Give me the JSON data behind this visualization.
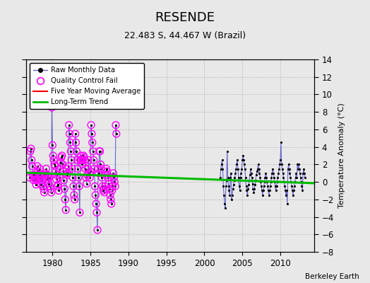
{
  "title": "RESENDE",
  "subtitle": "22.483 S, 44.467 W (Brazil)",
  "ylabel": "Temperature Anomaly (°C)",
  "credit": "Berkeley Earth",
  "xlim": [
    1976.5,
    2014.5
  ],
  "ylim": [
    -8,
    14
  ],
  "yticks": [
    -8,
    -6,
    -4,
    -2,
    0,
    2,
    4,
    6,
    8,
    10,
    12,
    14
  ],
  "xticks": [
    1980,
    1985,
    1990,
    1995,
    2000,
    2005,
    2010
  ],
  "background_color": "#e8e8e8",
  "plot_background": "#e8e8e8",
  "raw_color": "#6666cc",
  "qc_color": "#ff00ff",
  "ma_color": "#ff0000",
  "trend_color": "#00bb00",
  "raw_segments": [
    [
      [
        1977.0,
        0.5
      ],
      [
        1977.083,
        3.5
      ],
      [
        1977.167,
        3.8
      ],
      [
        1977.25,
        2.5
      ],
      [
        1977.333,
        1.8
      ],
      [
        1977.417,
        0.8
      ],
      [
        1977.5,
        0.2
      ],
      [
        1977.583,
        0.5
      ],
      [
        1977.667,
        0.8
      ],
      [
        1977.75,
        0.3
      ],
      [
        1977.833,
        -0.3
      ],
      [
        1977.917,
        0.2
      ],
      [
        1978.0,
        1.8
      ],
      [
        1978.083,
        1.2
      ],
      [
        1978.167,
        0.5
      ],
      [
        1978.25,
        0.8
      ],
      [
        1978.333,
        1.5
      ],
      [
        1978.417,
        0.5
      ],
      [
        1978.5,
        -0.3
      ],
      [
        1978.583,
        0.2
      ],
      [
        1978.667,
        0.8
      ],
      [
        1978.75,
        -0.5
      ],
      [
        1978.833,
        -0.8
      ],
      [
        1978.917,
        -1.2
      ],
      [
        1979.0,
        1.0
      ],
      [
        1979.083,
        0.8
      ],
      [
        1979.167,
        1.5
      ],
      [
        1979.25,
        0.3
      ],
      [
        1979.333,
        0.8
      ],
      [
        1979.417,
        0.5
      ],
      [
        1979.5,
        -0.2
      ],
      [
        1979.583,
        0.5
      ],
      [
        1979.667,
        -0.5
      ],
      [
        1979.75,
        -0.8
      ],
      [
        1979.833,
        -1.2
      ],
      [
        1979.917,
        8.5
      ],
      [
        1980.0,
        4.2
      ],
      [
        1980.083,
        3.0
      ],
      [
        1980.167,
        2.5
      ],
      [
        1980.25,
        2.0
      ],
      [
        1980.333,
        1.8
      ],
      [
        1980.417,
        1.2
      ],
      [
        1980.5,
        0.3
      ],
      [
        1980.583,
        0.8
      ],
      [
        1980.667,
        -0.5
      ],
      [
        1980.75,
        -0.3
      ],
      [
        1980.833,
        -1.0
      ],
      [
        1980.917,
        0.5
      ],
      [
        1981.0,
        1.5
      ],
      [
        1981.083,
        2.2
      ],
      [
        1981.167,
        2.8
      ],
      [
        1981.25,
        3.0
      ],
      [
        1981.333,
        2.0
      ],
      [
        1981.417,
        1.2
      ],
      [
        1981.5,
        0.2
      ],
      [
        1981.583,
        -0.8
      ],
      [
        1981.667,
        -2.0
      ],
      [
        1981.75,
        -3.2
      ],
      [
        1981.833,
        1.5
      ],
      [
        1981.917,
        0.8
      ],
      [
        1982.0,
        1.0
      ],
      [
        1982.083,
        1.8
      ],
      [
        1982.167,
        6.5
      ],
      [
        1982.25,
        5.5
      ],
      [
        1982.333,
        4.5
      ],
      [
        1982.417,
        3.5
      ],
      [
        1982.5,
        2.5
      ],
      [
        1982.583,
        1.5
      ],
      [
        1982.667,
        0.5
      ],
      [
        1982.75,
        -0.5
      ],
      [
        1982.833,
        -1.5
      ],
      [
        1982.917,
        -2.0
      ],
      [
        1983.0,
        5.5
      ],
      [
        1983.083,
        4.5
      ],
      [
        1983.167,
        3.5
      ],
      [
        1983.25,
        2.5
      ],
      [
        1983.333,
        1.5
      ],
      [
        1983.417,
        0.5
      ],
      [
        1983.5,
        -0.5
      ],
      [
        1983.583,
        -3.5
      ],
      [
        1983.667,
        2.5
      ],
      [
        1983.75,
        3.0
      ],
      [
        1983.833,
        2.5
      ],
      [
        1983.917,
        2.0
      ],
      [
        1984.0,
        2.5
      ],
      [
        1984.083,
        3.0
      ],
      [
        1984.167,
        2.8
      ],
      [
        1984.25,
        2.5
      ],
      [
        1984.333,
        1.5
      ],
      [
        1984.417,
        0.5
      ],
      [
        1984.5,
        -0.2
      ],
      [
        1984.583,
        0.8
      ],
      [
        1984.667,
        1.5
      ],
      [
        1984.75,
        2.5
      ],
      [
        1984.833,
        1.0
      ],
      [
        1984.917,
        0.5
      ],
      [
        1985.0,
        1.2
      ],
      [
        1985.083,
        6.5
      ],
      [
        1985.167,
        5.5
      ],
      [
        1985.25,
        4.5
      ],
      [
        1985.333,
        3.5
      ],
      [
        1985.417,
        2.5
      ],
      [
        1985.5,
        1.5
      ],
      [
        1985.583,
        -0.5
      ],
      [
        1985.667,
        -1.5
      ],
      [
        1985.75,
        -2.5
      ],
      [
        1985.833,
        -3.5
      ],
      [
        1985.917,
        -5.5
      ],
      [
        1986.0,
        1.5
      ],
      [
        1986.083,
        1.0
      ],
      [
        1986.167,
        3.5
      ],
      [
        1986.25,
        3.5
      ],
      [
        1986.333,
        2.0
      ],
      [
        1986.417,
        1.5
      ],
      [
        1986.5,
        0.5
      ],
      [
        1986.583,
        -0.5
      ],
      [
        1986.667,
        -1.0
      ],
      [
        1986.75,
        -0.8
      ],
      [
        1986.833,
        -1.2
      ],
      [
        1986.917,
        -0.5
      ],
      [
        1987.0,
        0.8
      ],
      [
        1987.083,
        1.5
      ],
      [
        1987.167,
        1.2
      ],
      [
        1987.25,
        0.8
      ],
      [
        1987.333,
        0.5
      ],
      [
        1987.417,
        -0.2
      ],
      [
        1987.5,
        -0.8
      ],
      [
        1987.583,
        -1.5
      ],
      [
        1987.667,
        -2.0
      ],
      [
        1987.75,
        -2.5
      ],
      [
        1987.833,
        -1.0
      ],
      [
        1987.917,
        -0.5
      ],
      [
        1988.0,
        1.0
      ],
      [
        1988.083,
        0.5
      ],
      [
        1988.167,
        0.0
      ],
      [
        1988.25,
        -0.5
      ],
      [
        1988.333,
        6.5
      ],
      [
        1988.417,
        5.5
      ]
    ],
    [
      [
        2002.0,
        0.3
      ],
      [
        2002.083,
        0.5
      ],
      [
        2002.167,
        1.5
      ],
      [
        2002.25,
        2.0
      ],
      [
        2002.333,
        2.5
      ],
      [
        2002.417,
        1.5
      ],
      [
        2002.5,
        -0.5
      ],
      [
        2002.583,
        -1.5
      ],
      [
        2002.667,
        -2.5
      ],
      [
        2002.75,
        -3.0
      ],
      [
        2002.833,
        -0.5
      ],
      [
        2002.917,
        0.2
      ],
      [
        2003.0,
        3.5
      ],
      [
        2003.083,
        0.5
      ],
      [
        2003.167,
        -0.5
      ],
      [
        2003.25,
        -1.0
      ],
      [
        2003.333,
        -1.5
      ],
      [
        2003.417,
        0.5
      ],
      [
        2003.5,
        1.0
      ],
      [
        2003.583,
        -2.0
      ],
      [
        2003.667,
        -1.5
      ],
      [
        2003.75,
        -0.8
      ],
      [
        2003.833,
        -0.3
      ],
      [
        2003.917,
        0.2
      ],
      [
        2004.0,
        0.5
      ],
      [
        2004.083,
        1.0
      ],
      [
        2004.167,
        1.5
      ],
      [
        2004.25,
        2.0
      ],
      [
        2004.333,
        2.5
      ],
      [
        2004.417,
        1.5
      ],
      [
        2004.5,
        0.5
      ],
      [
        2004.583,
        -0.5
      ],
      [
        2004.667,
        -1.0
      ],
      [
        2004.75,
        0.5
      ],
      [
        2004.833,
        1.0
      ],
      [
        2004.917,
        1.5
      ],
      [
        2005.0,
        2.5
      ],
      [
        2005.083,
        3.0
      ],
      [
        2005.167,
        2.5
      ],
      [
        2005.25,
        2.0
      ],
      [
        2005.333,
        1.5
      ],
      [
        2005.417,
        0.5
      ],
      [
        2005.5,
        -0.5
      ],
      [
        2005.583,
        -1.0
      ],
      [
        2005.667,
        -1.5
      ],
      [
        2005.75,
        -0.8
      ],
      [
        2005.833,
        -0.3
      ],
      [
        2005.917,
        0.2
      ],
      [
        2006.0,
        0.8
      ],
      [
        2006.083,
        1.5
      ],
      [
        2006.167,
        1.0
      ],
      [
        2006.25,
        0.5
      ],
      [
        2006.333,
        -0.2
      ],
      [
        2006.417,
        -0.8
      ],
      [
        2006.5,
        -1.2
      ],
      [
        2006.583,
        -0.8
      ],
      [
        2006.667,
        -0.3
      ],
      [
        2006.75,
        0.2
      ],
      [
        2006.833,
        0.8
      ],
      [
        2006.917,
        1.2
      ],
      [
        2007.0,
        1.5
      ],
      [
        2007.083,
        2.0
      ],
      [
        2007.167,
        1.5
      ],
      [
        2007.25,
        1.0
      ],
      [
        2007.333,
        0.5
      ],
      [
        2007.417,
        0.0
      ],
      [
        2007.5,
        -0.5
      ],
      [
        2007.583,
        -1.0
      ],
      [
        2007.667,
        -1.5
      ],
      [
        2007.75,
        -1.0
      ],
      [
        2007.833,
        -0.5
      ],
      [
        2007.917,
        0.0
      ],
      [
        2008.0,
        0.5
      ],
      [
        2008.083,
        1.0
      ],
      [
        2008.167,
        0.5
      ],
      [
        2008.25,
        0.0
      ],
      [
        2008.333,
        -0.5
      ],
      [
        2008.417,
        -1.0
      ],
      [
        2008.5,
        -1.5
      ],
      [
        2008.583,
        -1.0
      ],
      [
        2008.667,
        -0.5
      ],
      [
        2008.75,
        0.0
      ],
      [
        2008.833,
        0.5
      ],
      [
        2008.917,
        1.0
      ],
      [
        2009.0,
        1.5
      ],
      [
        2009.083,
        1.0
      ],
      [
        2009.167,
        0.5
      ],
      [
        2009.25,
        0.0
      ],
      [
        2009.333,
        -0.5
      ],
      [
        2009.417,
        -1.0
      ],
      [
        2009.5,
        -0.5
      ],
      [
        2009.583,
        0.0
      ],
      [
        2009.667,
        0.5
      ],
      [
        2009.75,
        1.0
      ],
      [
        2009.833,
        1.5
      ],
      [
        2009.917,
        2.0
      ],
      [
        2010.0,
        2.5
      ],
      [
        2010.083,
        4.5
      ],
      [
        2010.167,
        2.0
      ],
      [
        2010.25,
        1.5
      ],
      [
        2010.333,
        1.0
      ],
      [
        2010.417,
        0.5
      ],
      [
        2010.5,
        0.0
      ],
      [
        2010.583,
        -0.5
      ],
      [
        2010.667,
        -1.0
      ],
      [
        2010.75,
        -1.5
      ],
      [
        2010.833,
        -1.0
      ],
      [
        2010.917,
        -2.5
      ],
      [
        2011.0,
        1.5
      ],
      [
        2011.083,
        2.0
      ],
      [
        2011.167,
        1.5
      ],
      [
        2011.25,
        1.0
      ],
      [
        2011.333,
        0.5
      ],
      [
        2011.417,
        0.0
      ],
      [
        2011.5,
        -0.5
      ],
      [
        2011.583,
        -1.0
      ],
      [
        2011.667,
        -1.5
      ],
      [
        2011.75,
        -1.0
      ],
      [
        2011.833,
        -0.5
      ],
      [
        2011.917,
        0.0
      ],
      [
        2012.0,
        0.5
      ],
      [
        2012.083,
        1.0
      ],
      [
        2012.167,
        0.5
      ],
      [
        2012.25,
        2.0
      ],
      [
        2012.333,
        1.5
      ],
      [
        2012.417,
        2.0
      ],
      [
        2012.5,
        1.5
      ],
      [
        2012.583,
        1.0
      ],
      [
        2012.667,
        0.5
      ],
      [
        2012.75,
        0.0
      ],
      [
        2012.833,
        -0.5
      ],
      [
        2012.917,
        -1.0
      ],
      [
        2013.0,
        1.0
      ],
      [
        2013.083,
        1.5
      ],
      [
        2013.167,
        1.0
      ],
      [
        2013.25,
        0.5
      ]
    ]
  ],
  "qc_fail_x": [
    1977.0,
    1977.083,
    1977.167,
    1977.25,
    1977.333,
    1977.417,
    1977.5,
    1977.583,
    1977.667,
    1977.75,
    1977.833,
    1977.917,
    1978.0,
    1978.083,
    1978.167,
    1978.25,
    1978.333,
    1978.417,
    1978.5,
    1978.583,
    1978.667,
    1978.75,
    1978.833,
    1978.917,
    1979.0,
    1979.083,
    1979.167,
    1979.25,
    1979.333,
    1979.417,
    1979.5,
    1979.583,
    1979.667,
    1979.75,
    1979.833,
    1979.917,
    1980.0,
    1980.083,
    1980.167,
    1980.25,
    1980.333,
    1980.417,
    1980.5,
    1980.583,
    1980.667,
    1980.75,
    1980.833,
    1980.917,
    1981.0,
    1981.083,
    1981.167,
    1981.25,
    1981.333,
    1981.417,
    1981.5,
    1981.583,
    1981.667,
    1981.75,
    1981.833,
    1981.917,
    1982.0,
    1982.083,
    1982.167,
    1982.25,
    1982.333,
    1982.417,
    1982.5,
    1982.583,
    1982.667,
    1982.75,
    1982.833,
    1982.917,
    1983.0,
    1983.083,
    1983.167,
    1983.25,
    1983.333,
    1983.417,
    1983.5,
    1983.583,
    1983.667,
    1983.75,
    1983.833,
    1983.917,
    1984.0,
    1984.083,
    1984.167,
    1984.25,
    1984.333,
    1984.417,
    1984.5,
    1984.583,
    1984.667,
    1984.75,
    1984.833,
    1984.917,
    1985.0,
    1985.083,
    1985.167,
    1985.25,
    1985.333,
    1985.417,
    1985.5,
    1985.583,
    1985.667,
    1985.75,
    1985.833,
    1985.917,
    1986.0,
    1986.083,
    1986.167,
    1986.25,
    1986.333,
    1986.417,
    1986.5,
    1986.583,
    1986.667,
    1986.75,
    1986.833,
    1986.917,
    1987.0,
    1987.083,
    1987.167,
    1987.25,
    1987.333,
    1987.417,
    1987.5,
    1987.583,
    1987.667,
    1987.75,
    1987.833,
    1987.917,
    1988.0,
    1988.083,
    1988.167,
    1988.25,
    1988.333,
    1988.417
  ],
  "qc_fail_y": [
    0.5,
    3.5,
    3.8,
    2.5,
    1.8,
    0.8,
    0.2,
    0.5,
    0.8,
    0.3,
    -0.3,
    0.2,
    1.8,
    1.2,
    0.5,
    0.8,
    1.5,
    0.5,
    -0.3,
    0.2,
    0.8,
    -0.5,
    -0.8,
    -1.2,
    1.0,
    0.8,
    1.5,
    0.3,
    0.8,
    0.5,
    -0.2,
    0.5,
    -0.5,
    -0.8,
    -1.2,
    8.5,
    4.2,
    3.0,
    2.5,
    2.0,
    1.8,
    1.2,
    0.3,
    0.8,
    -0.5,
    -0.3,
    -1.0,
    0.5,
    1.5,
    2.2,
    2.8,
    3.0,
    2.0,
    1.2,
    0.2,
    -0.8,
    -2.0,
    -3.2,
    1.5,
    0.8,
    1.0,
    1.8,
    6.5,
    5.5,
    4.5,
    3.5,
    2.5,
    1.5,
    0.5,
    -0.5,
    -1.5,
    -2.0,
    5.5,
    4.5,
    3.5,
    2.5,
    1.5,
    0.5,
    -0.5,
    -3.5,
    2.5,
    3.0,
    2.5,
    2.0,
    2.5,
    3.0,
    2.8,
    2.5,
    1.5,
    0.5,
    -0.2,
    0.8,
    1.5,
    2.5,
    1.0,
    0.5,
    1.2,
    6.5,
    5.5,
    4.5,
    3.5,
    2.5,
    1.5,
    -0.5,
    -1.5,
    -2.5,
    -3.5,
    -5.5,
    1.5,
    1.0,
    3.5,
    3.5,
    2.0,
    1.5,
    0.5,
    -0.5,
    -1.0,
    -0.8,
    -1.2,
    -0.5,
    0.8,
    1.5,
    1.2,
    0.8,
    0.5,
    -0.2,
    -0.8,
    -1.5,
    -2.0,
    -2.5,
    -1.0,
    -0.5,
    1.0,
    0.5,
    0.0,
    -0.5,
    6.5,
    5.5
  ],
  "trend_x": [
    1976.5,
    2014.5
  ],
  "trend_y": [
    1.05,
    -0.15
  ]
}
